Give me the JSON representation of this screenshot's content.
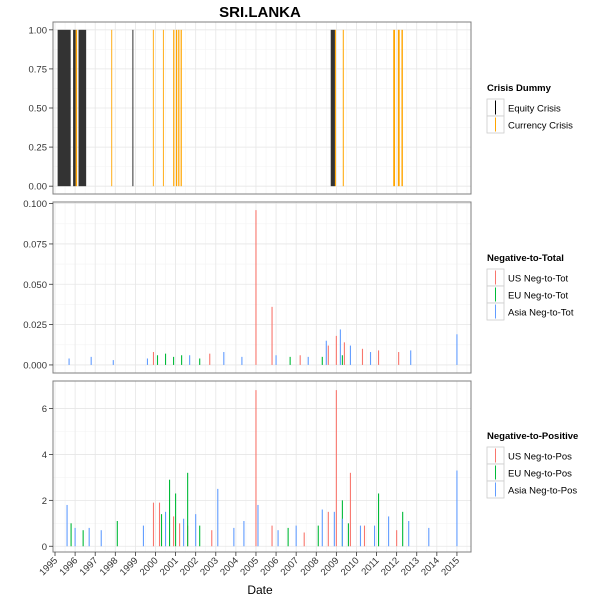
{
  "chart_data": {
    "type": "bar",
    "title": "SRI.LANKA",
    "xlabel": "Date",
    "x_ticks": [
      "1995",
      "1996",
      "1997",
      "1998",
      "1999",
      "2000",
      "2001",
      "2002",
      "2003",
      "2004",
      "2005",
      "2006",
      "2007",
      "2008",
      "2009",
      "2010",
      "2011",
      "2012",
      "2013",
      "2014",
      "2015"
    ],
    "xlim": [
      1994.9,
      2015.7
    ],
    "panels": [
      {
        "id": "crisis",
        "ylim": [
          -0.05,
          1.05
        ],
        "y_ticks": [
          "0.00",
          "0.25",
          "0.50",
          "0.75",
          "1.00"
        ],
        "y_tick_values": [
          0,
          0.25,
          0.5,
          0.75,
          1.0
        ],
        "legend_title": "Crisis Dummy",
        "legend_position": "right",
        "series": [
          {
            "name": "Equity Crisis",
            "color": "#000000",
            "bands": [
              [
                1995.13,
                1995.78
              ],
              [
                1995.9,
                1996.03
              ],
              [
                1996.17,
                1996.55
              ],
              [
                1998.85,
                1998.9
              ],
              [
                2008.72,
                2008.93
              ]
            ]
          },
          {
            "name": "Currency Crisis",
            "color": "#FFA500",
            "bands": [
              [
                1996.03,
                1996.1
              ],
              [
                1997.8,
                1997.84
              ],
              [
                1999.87,
                1999.91
              ],
              [
                2000.37,
                2000.41
              ],
              [
                2000.88,
                2000.94
              ],
              [
                2001.02,
                2001.08
              ],
              [
                2001.13,
                2001.19
              ],
              [
                2001.25,
                2001.31
              ],
              [
                2008.93,
                2008.98
              ],
              [
                2009.32,
                2009.37
              ],
              [
                2011.83,
                2011.92
              ],
              [
                2012.06,
                2012.15
              ],
              [
                2012.24,
                2012.31
              ]
            ]
          }
        ]
      },
      {
        "id": "neg-to-total",
        "ylim": [
          -0.005,
          0.101
        ],
        "y_ticks": [
          "0.000",
          "0.025",
          "0.050",
          "0.075",
          "0.100"
        ],
        "y_tick_values": [
          0,
          0.025,
          0.05,
          0.075,
          0.1
        ],
        "legend_title": "Negative-to-Total",
        "legend_position": "right",
        "series": [
          {
            "name": "US Neg-to-Tot",
            "color": "#F8766D",
            "points": [
              [
                1999.9,
                0.008
              ],
              [
                2005.0,
                0.096
              ],
              [
                2005.8,
                0.036
              ],
              [
                2008.6,
                0.012
              ],
              [
                2009.0,
                0.018
              ],
              [
                2009.4,
                0.014
              ],
              [
                2010.3,
                0.01
              ],
              [
                2011.1,
                0.009
              ],
              [
                2012.1,
                0.008
              ],
              [
                2002.7,
                0.007
              ],
              [
                2007.2,
                0.006
              ]
            ]
          },
          {
            "name": "EU Neg-to-Tot",
            "color": "#00BA38",
            "points": [
              [
                2000.1,
                0.006
              ],
              [
                2000.5,
                0.007
              ],
              [
                2000.9,
                0.005
              ],
              [
                2001.3,
                0.006
              ],
              [
                2002.2,
                0.004
              ],
              [
                2006.7,
                0.005
              ],
              [
                2009.3,
                0.006
              ],
              [
                2008.3,
                0.005
              ]
            ]
          },
          {
            "name": "Asia Neg-to-Tot",
            "color": "#619CFF",
            "points": [
              [
                1995.7,
                0.004
              ],
              [
                1996.8,
                0.005
              ],
              [
                1997.9,
                0.003
              ],
              [
                1999.6,
                0.004
              ],
              [
                2001.7,
                0.006
              ],
              [
                2003.4,
                0.008
              ],
              [
                2004.3,
                0.005
              ],
              [
                2006.0,
                0.006
              ],
              [
                2007.6,
                0.005
              ],
              [
                2008.5,
                0.015
              ],
              [
                2009.2,
                0.022
              ],
              [
                2009.7,
                0.012
              ],
              [
                2010.7,
                0.008
              ],
              [
                2012.7,
                0.009
              ],
              [
                2015.0,
                0.019
              ]
            ]
          }
        ]
      },
      {
        "id": "neg-to-pos",
        "ylim": [
          -0.25,
          7.2
        ],
        "y_ticks": [
          "0",
          "2",
          "4",
          "6"
        ],
        "y_tick_values": [
          0,
          2,
          4,
          6
        ],
        "legend_title": "Negative-to-Positive",
        "legend_position": "right",
        "series": [
          {
            "name": "US Neg-to-Pos",
            "color": "#F8766D",
            "points": [
              [
                1999.9,
                1.9
              ],
              [
                2000.2,
                1.9
              ],
              [
                2000.9,
                1.3
              ],
              [
                2001.2,
                1.0
              ],
              [
                2001.6,
                0.9
              ],
              [
                2005.0,
                6.8
              ],
              [
                2005.8,
                0.9
              ],
              [
                2008.6,
                1.5
              ],
              [
                2009.0,
                6.8
              ],
              [
                2009.7,
                3.2
              ],
              [
                2010.4,
                0.9
              ],
              [
                2012.0,
                0.7
              ],
              [
                2002.8,
                0.7
              ],
              [
                2007.4,
                0.6
              ]
            ]
          },
          {
            "name": "EU Neg-to-Pos",
            "color": "#00BA38",
            "points": [
              [
                1995.8,
                1.0
              ],
              [
                1996.4,
                0.7
              ],
              [
                1998.1,
                1.1
              ],
              [
                2000.3,
                1.4
              ],
              [
                2000.7,
                2.9
              ],
              [
                2001.0,
                2.3
              ],
              [
                2001.6,
                3.2
              ],
              [
                2002.2,
                0.9
              ],
              [
                2006.6,
                0.8
              ],
              [
                2009.3,
                2.0
              ],
              [
                2009.6,
                1.0
              ],
              [
                2011.1,
                2.3
              ],
              [
                2012.3,
                1.5
              ],
              [
                2008.1,
                0.9
              ]
            ]
          },
          {
            "name": "Asia Neg-to-Pos",
            "color": "#619CFF",
            "points": [
              [
                1995.6,
                1.8
              ],
              [
                1996.0,
                0.8
              ],
              [
                1996.7,
                0.8
              ],
              [
                1997.3,
                0.7
              ],
              [
                1999.4,
                0.9
              ],
              [
                2000.5,
                1.5
              ],
              [
                2001.4,
                1.2
              ],
              [
                2002.0,
                1.4
              ],
              [
                2003.1,
                2.5
              ],
              [
                2003.9,
                0.8
              ],
              [
                2004.4,
                1.1
              ],
              [
                2005.1,
                1.8
              ],
              [
                2006.1,
                0.7
              ],
              [
                2007.0,
                0.9
              ],
              [
                2008.3,
                1.6
              ],
              [
                2008.9,
                1.5
              ],
              [
                2009.3,
                1.2
              ],
              [
                2010.2,
                0.9
              ],
              [
                2010.9,
                0.9
              ],
              [
                2011.6,
                1.3
              ],
              [
                2012.6,
                1.1
              ],
              [
                2013.6,
                0.8
              ],
              [
                2015.0,
                3.3
              ]
            ]
          }
        ]
      }
    ]
  }
}
